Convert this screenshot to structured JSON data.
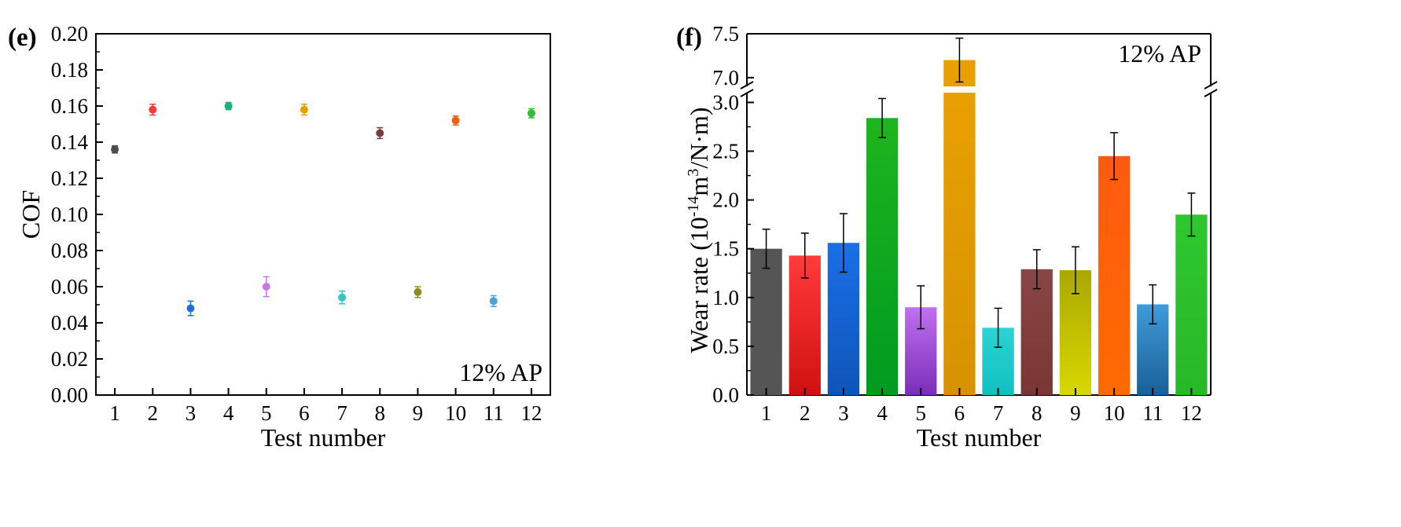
{
  "chart_data": [
    {
      "type": "scatter",
      "panel_label": "(e)",
      "title": "",
      "xlabel": "Test number",
      "ylabel": "COF",
      "annotation": "12% AP",
      "xlim": [
        0.5,
        12.5
      ],
      "ylim": [
        0,
        0.2
      ],
      "x_ticks": [
        1,
        2,
        3,
        4,
        5,
        6,
        7,
        8,
        9,
        10,
        11,
        12
      ],
      "x_tick_labels": [
        "1",
        "2",
        "3",
        "4",
        "5",
        "6",
        "7",
        "8",
        "9",
        "10",
        "11",
        "12"
      ],
      "y_ticks": [
        0,
        0.02,
        0.04,
        0.06,
        0.08,
        0.1,
        0.12,
        0.14,
        0.16,
        0.18,
        0.2
      ],
      "y_tick_labels": [
        "0.00",
        "0.02",
        "0.04",
        "0.06",
        "0.08",
        "0.10",
        "0.12",
        "0.14",
        "0.16",
        "0.18",
        "0.20"
      ],
      "x": [
        1,
        2,
        3,
        4,
        5,
        6,
        7,
        8,
        9,
        10,
        11,
        12
      ],
      "values": [
        0.136,
        0.158,
        0.048,
        0.16,
        0.06,
        0.158,
        0.054,
        0.145,
        0.057,
        0.152,
        0.052,
        0.156
      ],
      "errors": [
        0.002,
        0.003,
        0.004,
        0.002,
        0.0055,
        0.003,
        0.0035,
        0.003,
        0.003,
        0.0025,
        0.003,
        0.0025
      ],
      "colors": [
        "#4d4d4d",
        "#f03c3c",
        "#1f6fd8",
        "#1fb07a",
        "#c67ae0",
        "#e0a000",
        "#2ec8c8",
        "#7d3b3b",
        "#8c8c1a",
        "#f06010",
        "#4aa0d8",
        "#2ec02e"
      ]
    },
    {
      "type": "bar",
      "panel_label": "(f)",
      "title": "",
      "xlabel": "Test number",
      "ylabel_prefix": "Wear rate (10",
      "ylabel_exp1": "-14",
      "ylabel_mid": "m",
      "ylabel_exp2": "3",
      "ylabel_suffix": "/N·m)",
      "annotation": "12% AP",
      "break_symbol": "//",
      "y_break": [
        3.1,
        6.9
      ],
      "ylim_lower": [
        0,
        3.1
      ],
      "ylim_upper": [
        6.9,
        7.5
      ],
      "categories": [
        "1",
        "2",
        "3",
        "4",
        "5",
        "6",
        "7",
        "8",
        "9",
        "10",
        "11",
        "12"
      ],
      "y_ticks_lower": [
        0.0,
        0.5,
        1.0,
        1.5,
        2.0,
        2.5,
        3.0
      ],
      "y_tick_labels_lower": [
        "0.0",
        "0.5",
        "1.0",
        "1.5",
        "2.0",
        "2.5",
        "3.0"
      ],
      "y_ticks_upper": [
        7.0,
        7.5
      ],
      "y_tick_labels_upper": [
        "7.0",
        "7.5"
      ],
      "values": [
        1.5,
        1.43,
        1.56,
        2.84,
        0.9,
        7.2,
        0.69,
        1.29,
        1.28,
        2.45,
        0.93,
        1.85
      ],
      "errors": [
        0.2,
        0.23,
        0.3,
        0.2,
        0.22,
        0.25,
        0.2,
        0.2,
        0.24,
        0.24,
        0.2,
        0.22
      ],
      "colors_top": [
        "#555555",
        "#ff3b3b",
        "#1a6fe8",
        "#1eb51e",
        "#c070f0",
        "#e8a000",
        "#2ed2d2",
        "#8a4545",
        "#aaa800",
        "#ff5a10",
        "#3f9bd8",
        "#2ec82e"
      ],
      "colors_bottom": [
        "#555555",
        "#d01010",
        "#0f55b8",
        "#009a20",
        "#7a2eb8",
        "#d89200",
        "#10c0c0",
        "#7a3535",
        "#d8d800",
        "#ff6a00",
        "#1a5f98",
        "#28b828"
      ]
    }
  ]
}
